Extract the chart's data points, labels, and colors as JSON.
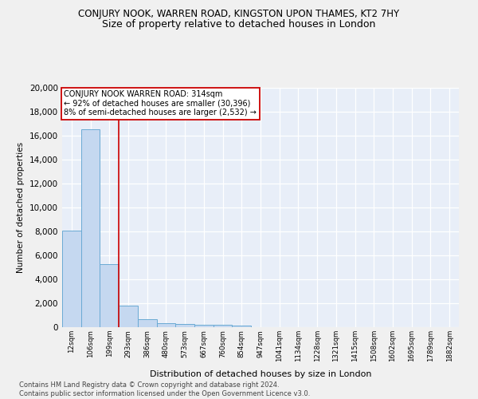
{
  "title": "CONJURY NOOK, WARREN ROAD, KINGSTON UPON THAMES, KT2 7HY",
  "subtitle": "Size of property relative to detached houses in London",
  "xlabel": "Distribution of detached houses by size in London",
  "ylabel": "Number of detached properties",
  "categories": [
    "12sqm",
    "106sqm",
    "199sqm",
    "293sqm",
    "386sqm",
    "480sqm",
    "573sqm",
    "667sqm",
    "760sqm",
    "854sqm",
    "947sqm",
    "1041sqm",
    "1134sqm",
    "1228sqm",
    "1321sqm",
    "1415sqm",
    "1508sqm",
    "1602sqm",
    "1695sqm",
    "1789sqm",
    "1882sqm"
  ],
  "values": [
    8100,
    16500,
    5300,
    1800,
    700,
    340,
    260,
    210,
    180,
    150,
    0,
    0,
    0,
    0,
    0,
    0,
    0,
    0,
    0,
    0,
    0
  ],
  "bar_color": "#c5d8f0",
  "bar_edge_color": "#6aaad4",
  "vline_x": 3.0,
  "vline_color": "#cc0000",
  "annotation_title": "CONJURY NOOK WARREN ROAD: 314sqm",
  "annotation_line1": "← 92% of detached houses are smaller (30,396)",
  "annotation_line2": "8% of semi-detached houses are larger (2,532) →",
  "annotation_box_color": "#ffffff",
  "annotation_box_edge_color": "#cc0000",
  "ylim": [
    0,
    20000
  ],
  "yticks": [
    0,
    2000,
    4000,
    6000,
    8000,
    10000,
    12000,
    14000,
    16000,
    18000,
    20000
  ],
  "footnote1": "Contains HM Land Registry data © Crown copyright and database right 2024.",
  "footnote2": "Contains public sector information licensed under the Open Government Licence v3.0.",
  "bg_color": "#e8eef8",
  "grid_color": "#ffffff",
  "title_fontsize": 8.5,
  "subtitle_fontsize": 9
}
